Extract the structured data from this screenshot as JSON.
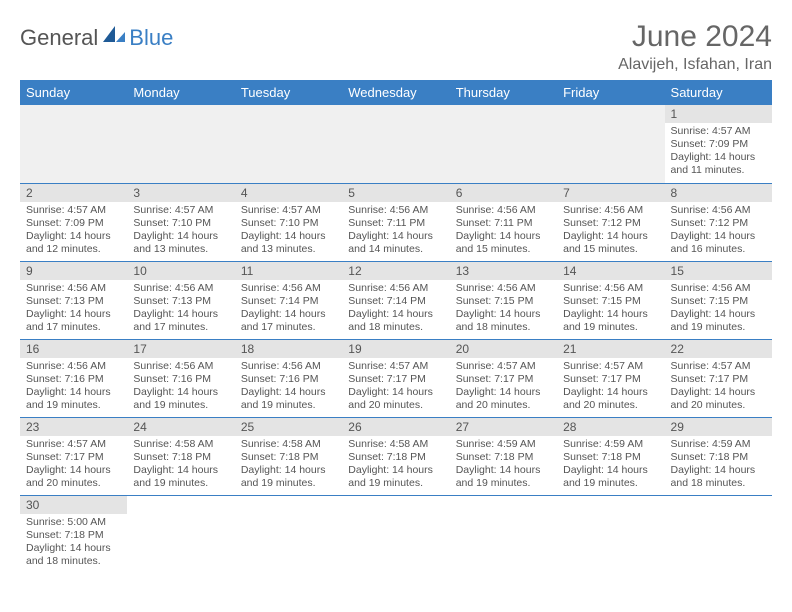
{
  "brand": {
    "general": "General",
    "blue": "Blue"
  },
  "title": "June 2024",
  "location": "Alavijeh, Isfahan, Iran",
  "colors": {
    "header_bg": "#3a7fc4",
    "header_text": "#ffffff",
    "daynum_bg": "#e4e4e4",
    "text": "#555555",
    "cell_border": "#3a7fc4",
    "blank_bg": "#f0f0f0"
  },
  "weekdays": [
    "Sunday",
    "Monday",
    "Tuesday",
    "Wednesday",
    "Thursday",
    "Friday",
    "Saturday"
  ],
  "layout": {
    "first_weekday_index": 6,
    "days_in_month": 30
  },
  "days": {
    "1": {
      "sunrise": "4:57 AM",
      "sunset": "7:09 PM",
      "daylight": "14 hours and 11 minutes."
    },
    "2": {
      "sunrise": "4:57 AM",
      "sunset": "7:09 PM",
      "daylight": "14 hours and 12 minutes."
    },
    "3": {
      "sunrise": "4:57 AM",
      "sunset": "7:10 PM",
      "daylight": "14 hours and 13 minutes."
    },
    "4": {
      "sunrise": "4:57 AM",
      "sunset": "7:10 PM",
      "daylight": "14 hours and 13 minutes."
    },
    "5": {
      "sunrise": "4:56 AM",
      "sunset": "7:11 PM",
      "daylight": "14 hours and 14 minutes."
    },
    "6": {
      "sunrise": "4:56 AM",
      "sunset": "7:11 PM",
      "daylight": "14 hours and 15 minutes."
    },
    "7": {
      "sunrise": "4:56 AM",
      "sunset": "7:12 PM",
      "daylight": "14 hours and 15 minutes."
    },
    "8": {
      "sunrise": "4:56 AM",
      "sunset": "7:12 PM",
      "daylight": "14 hours and 16 minutes."
    },
    "9": {
      "sunrise": "4:56 AM",
      "sunset": "7:13 PM",
      "daylight": "14 hours and 17 minutes."
    },
    "10": {
      "sunrise": "4:56 AM",
      "sunset": "7:13 PM",
      "daylight": "14 hours and 17 minutes."
    },
    "11": {
      "sunrise": "4:56 AM",
      "sunset": "7:14 PM",
      "daylight": "14 hours and 17 minutes."
    },
    "12": {
      "sunrise": "4:56 AM",
      "sunset": "7:14 PM",
      "daylight": "14 hours and 18 minutes."
    },
    "13": {
      "sunrise": "4:56 AM",
      "sunset": "7:15 PM",
      "daylight": "14 hours and 18 minutes."
    },
    "14": {
      "sunrise": "4:56 AM",
      "sunset": "7:15 PM",
      "daylight": "14 hours and 19 minutes."
    },
    "15": {
      "sunrise": "4:56 AM",
      "sunset": "7:15 PM",
      "daylight": "14 hours and 19 minutes."
    },
    "16": {
      "sunrise": "4:56 AM",
      "sunset": "7:16 PM",
      "daylight": "14 hours and 19 minutes."
    },
    "17": {
      "sunrise": "4:56 AM",
      "sunset": "7:16 PM",
      "daylight": "14 hours and 19 minutes."
    },
    "18": {
      "sunrise": "4:56 AM",
      "sunset": "7:16 PM",
      "daylight": "14 hours and 19 minutes."
    },
    "19": {
      "sunrise": "4:57 AM",
      "sunset": "7:17 PM",
      "daylight": "14 hours and 20 minutes."
    },
    "20": {
      "sunrise": "4:57 AM",
      "sunset": "7:17 PM",
      "daylight": "14 hours and 20 minutes."
    },
    "21": {
      "sunrise": "4:57 AM",
      "sunset": "7:17 PM",
      "daylight": "14 hours and 20 minutes."
    },
    "22": {
      "sunrise": "4:57 AM",
      "sunset": "7:17 PM",
      "daylight": "14 hours and 20 minutes."
    },
    "23": {
      "sunrise": "4:57 AM",
      "sunset": "7:17 PM",
      "daylight": "14 hours and 20 minutes."
    },
    "24": {
      "sunrise": "4:58 AM",
      "sunset": "7:18 PM",
      "daylight": "14 hours and 19 minutes."
    },
    "25": {
      "sunrise": "4:58 AM",
      "sunset": "7:18 PM",
      "daylight": "14 hours and 19 minutes."
    },
    "26": {
      "sunrise": "4:58 AM",
      "sunset": "7:18 PM",
      "daylight": "14 hours and 19 minutes."
    },
    "27": {
      "sunrise": "4:59 AM",
      "sunset": "7:18 PM",
      "daylight": "14 hours and 19 minutes."
    },
    "28": {
      "sunrise": "4:59 AM",
      "sunset": "7:18 PM",
      "daylight": "14 hours and 19 minutes."
    },
    "29": {
      "sunrise": "4:59 AM",
      "sunset": "7:18 PM",
      "daylight": "14 hours and 18 minutes."
    },
    "30": {
      "sunrise": "5:00 AM",
      "sunset": "7:18 PM",
      "daylight": "14 hours and 18 minutes."
    }
  },
  "labels": {
    "sunrise": "Sunrise:",
    "sunset": "Sunset:",
    "daylight": "Daylight:"
  }
}
